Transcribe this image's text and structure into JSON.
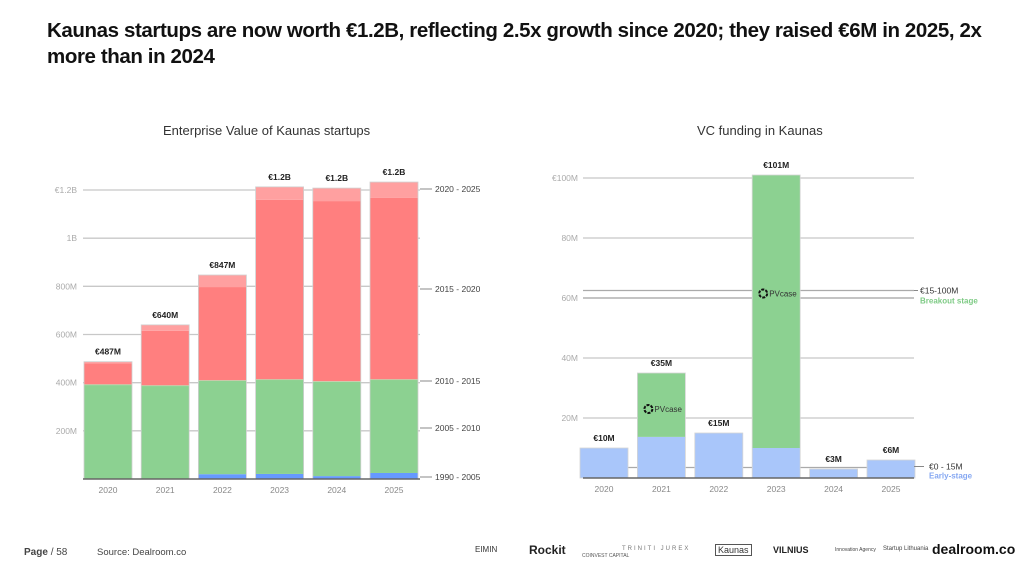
{
  "headline": "Kaunas startups are now worth €1.2B, reflecting 2.5x growth since 2020; they raised €6M in 2025, 2x more than in 2024",
  "footer": {
    "page_label": "Page",
    "page_sep": "/ 58",
    "source": "Source:  Dealroom.co"
  },
  "logos": [
    "EIMIN",
    "Rockit",
    "COINVEST CAPITAL",
    "TRINITI JUREX",
    "Kaunas",
    "VILNIUS",
    "Innovation Agency",
    "Startup Lithuania",
    "dealroom.co"
  ],
  "colors": {
    "light_pink": "#FFA0A0",
    "red": "#FF7F7F",
    "green": "#8CD191",
    "blue": "#6699FF",
    "light_blue": "#A9C6FA",
    "breakout_label": "#7FCB86",
    "early_label": "#86A8F2"
  },
  "chart_data": [
    {
      "type": "bar",
      "stacked": true,
      "title": "Enterprise Value of Kaunas startups",
      "categories": [
        "2020",
        "2021",
        "2022",
        "2023",
        "2024",
        "2025"
      ],
      "yticks": [
        "200M",
        "400M",
        "600M",
        "800M",
        "1B",
        "€1.2B"
      ],
      "ytick_values": [
        200,
        400,
        600,
        800,
        1000,
        1200
      ],
      "unit": "€M",
      "ylim": [
        0,
        1280
      ],
      "grid": true,
      "series": [
        {
          "name": "1990 - 2005",
          "color": "#6699FF",
          "values": [
            0,
            0,
            20,
            21,
            12,
            25
          ]
        },
        {
          "name": "2005 - 2010",
          "color": "#8CD191",
          "values": [
            390,
            386,
            387,
            390,
            391,
            386
          ]
        },
        {
          "name": "2010 - 2015",
          "color": "#A8DCA8",
          "values": [
            3,
            3,
            3,
            3,
            3,
            3
          ]
        },
        {
          "name": "2015 - 2020",
          "color": "#FF7F7F",
          "values": [
            87,
            226,
            387,
            745,
            748,
            753
          ]
        },
        {
          "name": "2020 - 2025",
          "color": "#FFA0A0",
          "values": [
            7,
            25,
            50,
            54,
            54,
            66
          ]
        }
      ],
      "totals": [
        487,
        640,
        847,
        1213,
        1208,
        1233
      ],
      "total_labels": [
        "€487M",
        "€640M",
        "€847M",
        "€1.2B",
        "€1.2B",
        "€1.2B"
      ],
      "legend_labels": [
        "2020 - 2025",
        "2015 - 2020",
        "2010 - 2015",
        "2005 - 2010",
        "1990 - 2005"
      ],
      "legend_placement": "right"
    },
    {
      "type": "bar",
      "stacked": true,
      "title": "VC funding in Kaunas",
      "categories": [
        "2020",
        "2021",
        "2022",
        "2023",
        "2024",
        "2025"
      ],
      "yticks": [
        "20M",
        "40M",
        "60M",
        "80M",
        "€100M"
      ],
      "ytick_values": [
        20,
        40,
        60,
        80,
        100
      ],
      "unit": "€M",
      "ylim": [
        0,
        107
      ],
      "grid": true,
      "series": [
        {
          "name": "€0 - 15M Early-stage",
          "color": "#A9C6FA",
          "values": [
            10,
            13.7,
            15,
            10,
            3,
            6
          ]
        },
        {
          "name": "€15-100M Breakout stage",
          "color": "#8CD191",
          "values": [
            0,
            21.3,
            0,
            91,
            0,
            0
          ]
        }
      ],
      "totals": [
        10,
        35,
        15,
        101,
        3,
        6
      ],
      "total_labels": [
        "€10M",
        "€35M",
        "€15M",
        "€101M",
        "€3M",
        "€6M"
      ],
      "annotations": [
        {
          "category": "2021",
          "text": "PVcase"
        },
        {
          "category": "2023",
          "text": "PVcase"
        }
      ],
      "reference_lines": [
        {
          "value": 62.5,
          "label": "€15-100M",
          "sublabel": "Breakout stage"
        },
        {
          "value": 60,
          "label": "",
          "sublabel": ""
        },
        {
          "value": 3.5,
          "label": "€0 - 15M",
          "sublabel": "Early-stage"
        }
      ],
      "legend_placement": "right"
    }
  ]
}
